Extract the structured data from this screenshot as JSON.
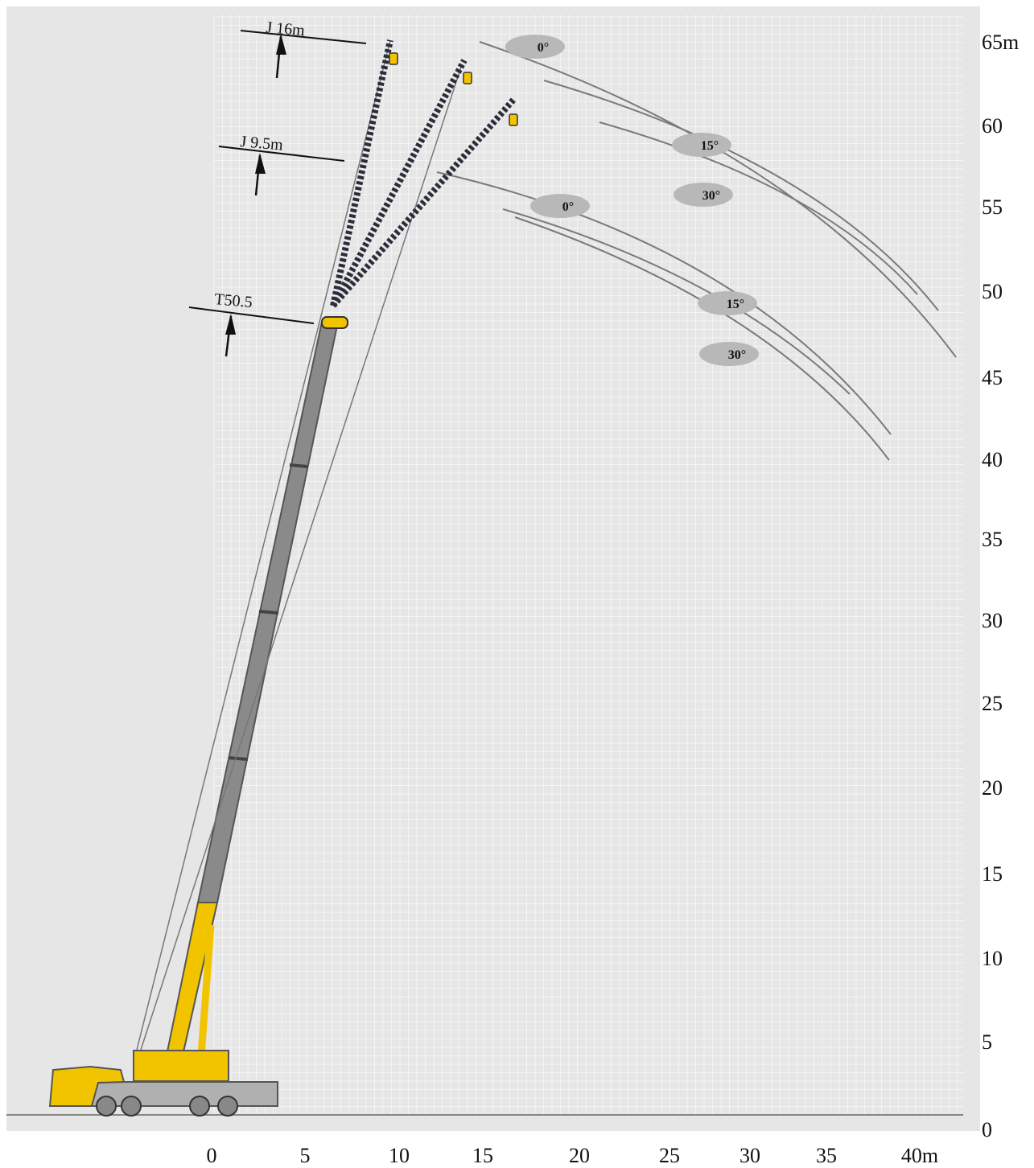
{
  "diagram": {
    "x_ticks": [
      "0",
      "5",
      "10",
      "15",
      "20",
      "25",
      "30",
      "35",
      "40m"
    ],
    "y_ticks": [
      "0",
      "5",
      "10",
      "15",
      "20",
      "25",
      "30",
      "35",
      "40",
      "45",
      "50",
      "55",
      "60",
      "65m"
    ],
    "annotations": {
      "jib_16": "J 16m",
      "jib_9_5": "J 9.5m",
      "main_boom": "T50.5"
    },
    "angle_labels": {
      "j16_0": "0°",
      "j16_15": "15°",
      "j16_30": "30°",
      "j9_0": "0°",
      "j9_15": "15°",
      "j9_30": "30°"
    },
    "colors": {
      "panel_bg": "#e6e6e6",
      "grid_line": "#f7f7f7",
      "boom_grey": "#808080",
      "crane_yellow": "#f2c400",
      "jib_dark": "#2a2d3a",
      "label_ellipse": "#b8b8b8",
      "curve": "#777777"
    }
  }
}
